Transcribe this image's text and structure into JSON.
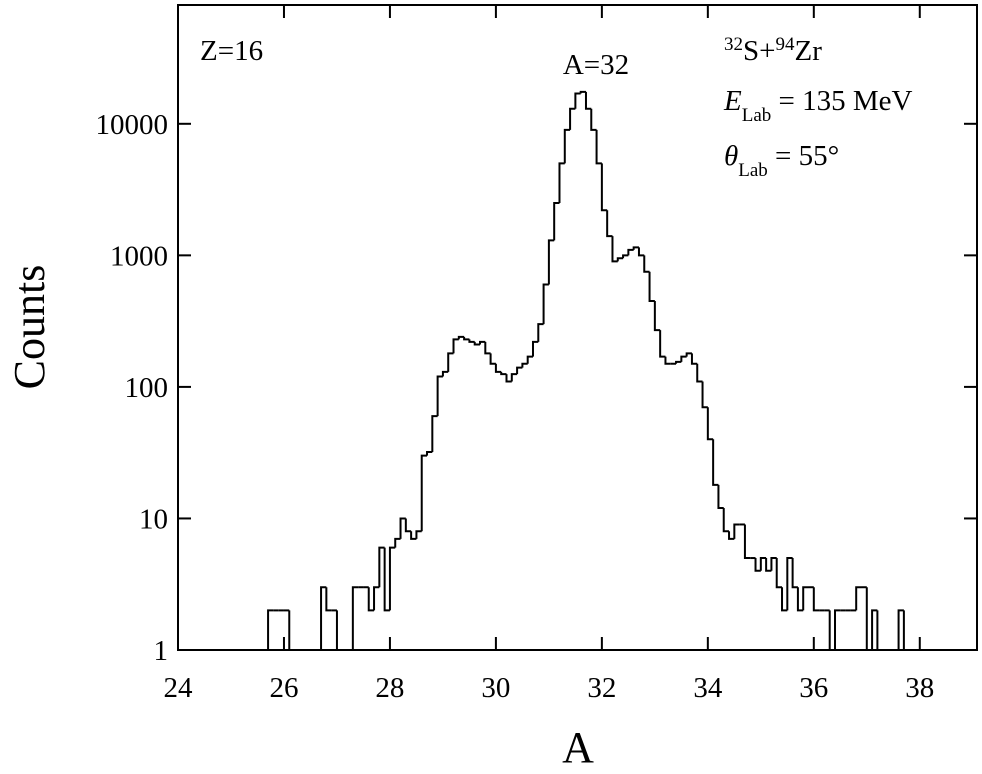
{
  "chart_data": {
    "type": "histogram",
    "x_label": "A",
    "y_label": "Counts",
    "annotations": {
      "z": "Z=16",
      "peak": "A=32",
      "reaction": {
        "mass1": "32",
        "element1": "S+",
        "mass2": "94",
        "element2": "Zr"
      },
      "energy": {
        "symbol": "E",
        "sub": "Lab",
        "text": " = 135 MeV"
      },
      "angle": {
        "symbol": "θ",
        "sub": "Lab",
        "text": " = 55°"
      }
    },
    "color": "#000000",
    "ylog": true,
    "xlim": [
      24,
      39.08
    ],
    "ylim": [
      1,
      80000
    ],
    "xticks": [
      24,
      26,
      28,
      30,
      32,
      34,
      36,
      38
    ],
    "yticks": [
      1,
      10,
      100,
      1000,
      10000
    ],
    "bins": [
      25.7,
      25.8,
      25.9,
      26.0,
      26.1,
      26.2,
      26.3,
      26.4,
      26.5,
      26.6,
      26.7,
      26.8,
      26.9,
      27.0,
      27.1,
      27.2,
      27.3,
      27.4,
      27.5,
      27.6,
      27.7,
      27.8,
      27.9,
      28.0,
      28.1,
      28.2,
      28.3,
      28.4,
      28.5,
      28.6,
      28.7,
      28.8,
      28.9,
      29.0,
      29.1,
      29.2,
      29.3,
      29.4,
      29.5,
      29.6,
      29.7,
      29.8,
      29.9,
      30.0,
      30.1,
      30.2,
      30.3,
      30.4,
      30.5,
      30.6,
      30.7,
      30.8,
      30.9,
      31.0,
      31.1,
      31.2,
      31.3,
      31.4,
      31.5,
      31.6,
      31.7,
      31.8,
      31.9,
      32.0,
      32.1,
      32.2,
      32.3,
      32.4,
      32.5,
      32.6,
      32.7,
      32.8,
      32.9,
      33.0,
      33.1,
      33.2,
      33.3,
      33.4,
      33.5,
      33.6,
      33.7,
      33.8,
      33.9,
      34.0,
      34.1,
      34.2,
      34.3,
      34.4,
      34.5,
      34.6,
      34.7,
      34.8,
      34.9,
      35.0,
      35.1,
      35.2,
      35.3,
      35.4,
      35.5,
      35.6,
      35.7,
      35.8,
      35.9,
      36.0,
      36.1,
      36.2,
      36.3,
      36.4,
      36.5,
      36.6,
      36.7,
      36.8,
      36.9,
      37.0,
      37.1,
      37.2,
      37.3,
      37.4,
      37.5,
      37.6,
      37.7,
      37.8
    ],
    "values": [
      2,
      2,
      2,
      2,
      1,
      1,
      1,
      1,
      1,
      1,
      3,
      2,
      2,
      1,
      1,
      1,
      3,
      3,
      3,
      2,
      3,
      6,
      2,
      6,
      7,
      10,
      8,
      7,
      8,
      30,
      32,
      60,
      120,
      130,
      180,
      230,
      240,
      230,
      220,
      210,
      220,
      180,
      150,
      130,
      125,
      110,
      125,
      140,
      150,
      170,
      220,
      300,
      600,
      1300,
      2500,
      5000,
      9000,
      13000,
      17000,
      17500,
      13000,
      9000,
      5000,
      2200,
      1400,
      900,
      950,
      1000,
      1100,
      1150,
      1000,
      750,
      450,
      270,
      170,
      150,
      150,
      155,
      170,
      180,
      150,
      110,
      70,
      40,
      18,
      12,
      8,
      7,
      9,
      9,
      5,
      5,
      4,
      5,
      4,
      5,
      3,
      2,
      5,
      3,
      2,
      3,
      3,
      2,
      2,
      2,
      1,
      2,
      2,
      2,
      2,
      3,
      3,
      1,
      2,
      1,
      1,
      1,
      1,
      2,
      1
    ]
  }
}
